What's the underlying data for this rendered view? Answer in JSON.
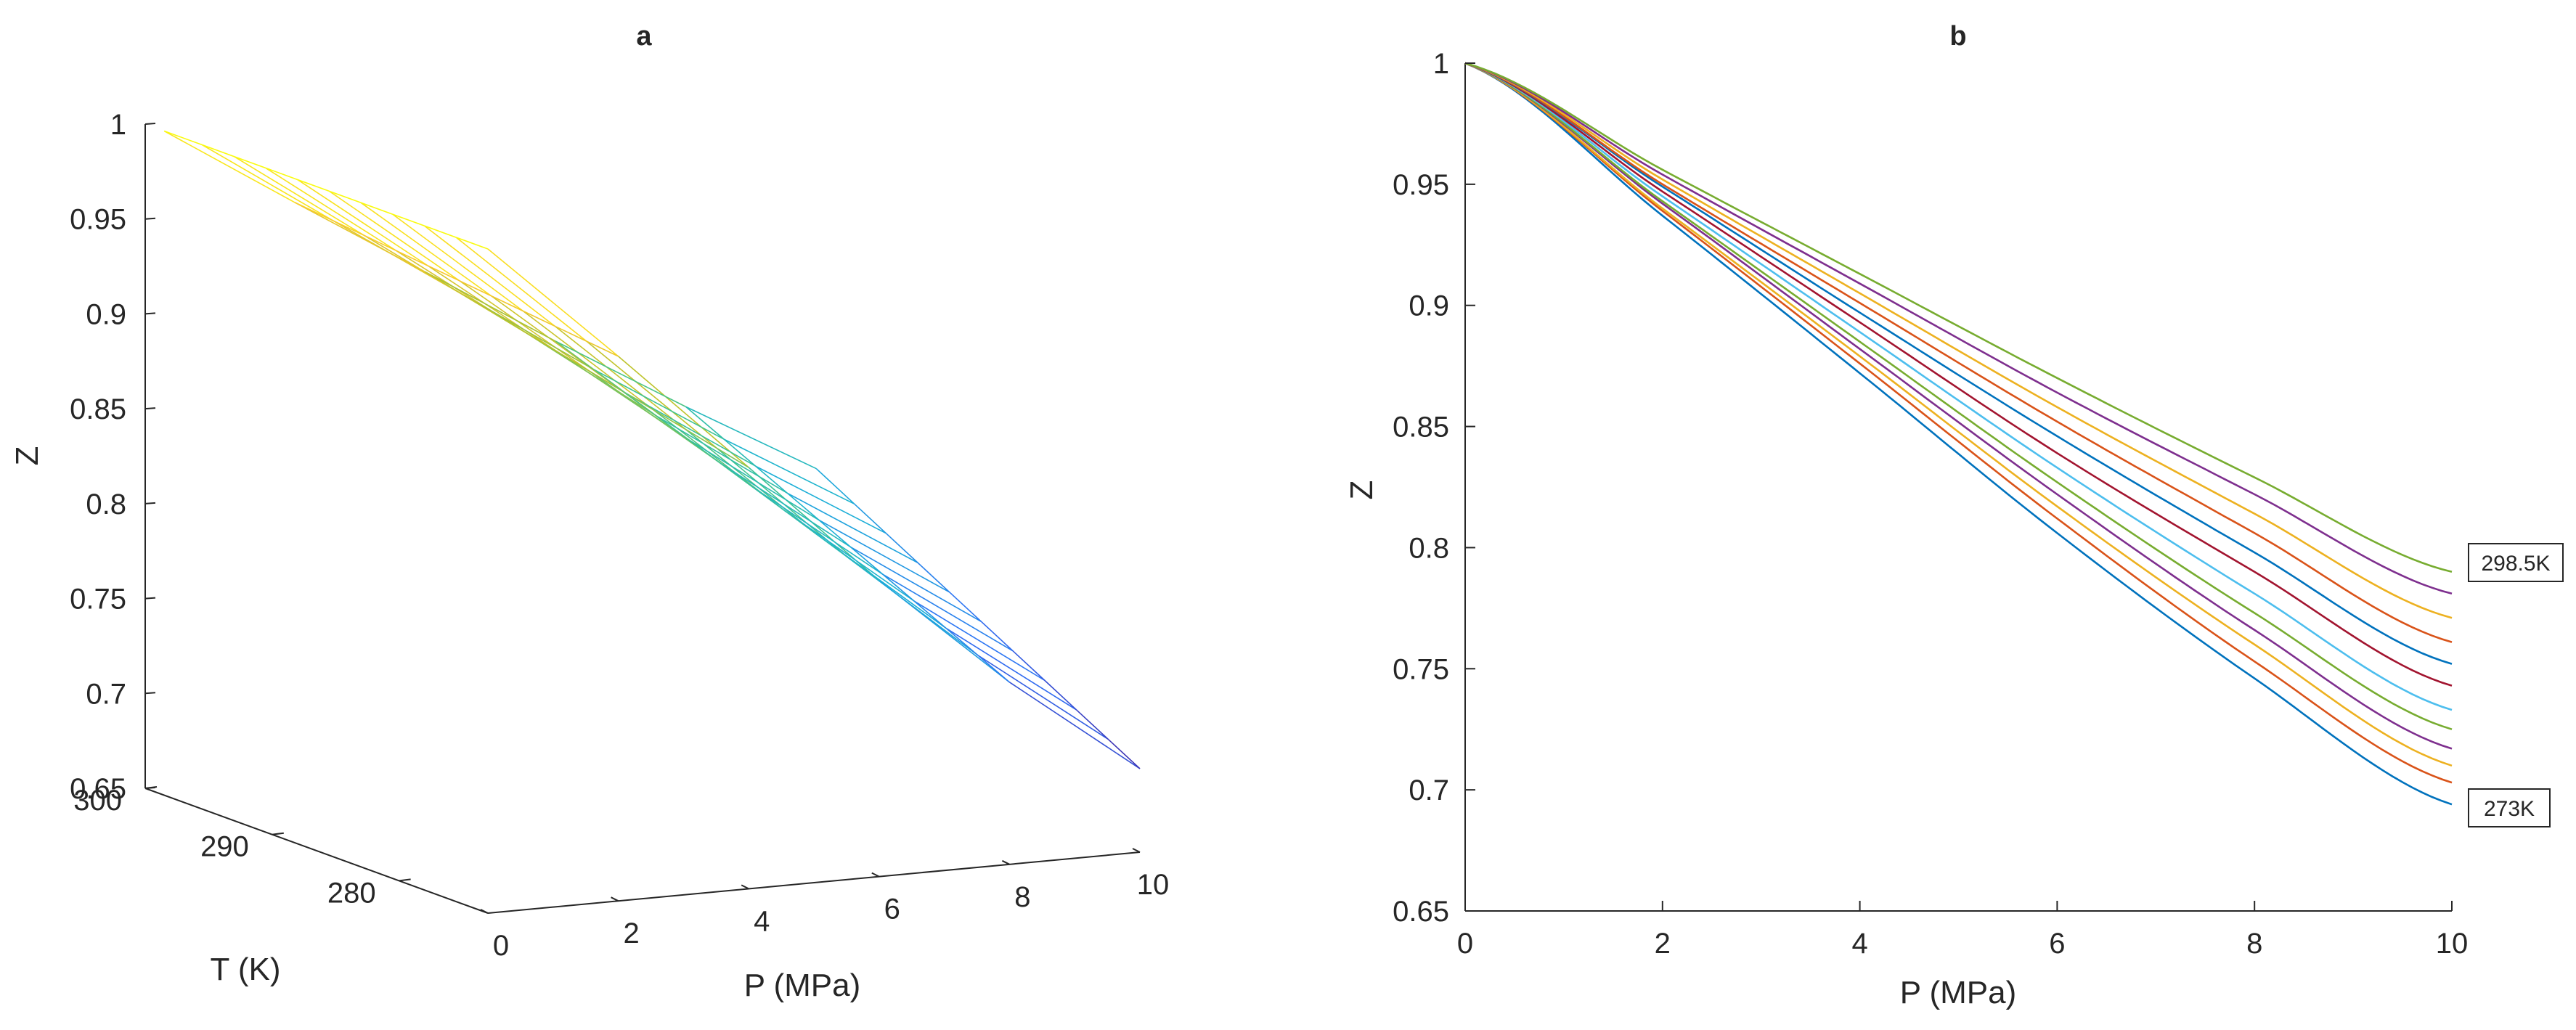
{
  "chart_data": [
    {
      "panel": "a",
      "title": "a",
      "type": "surface-mesh-3d",
      "xlabel": "P (MPa)",
      "ylabel": "T (K)",
      "zlabel": "Z",
      "xlim": [
        0,
        10
      ],
      "ylim": [
        273,
        300
      ],
      "zlim": [
        0.65,
        1.0
      ],
      "xticks": [
        "0",
        "2",
        "4",
        "6",
        "8",
        "10"
      ],
      "yticks": [
        "300",
        "290",
        "280"
      ],
      "zticks": [
        "0.65",
        "0.7",
        "0.75",
        "0.8",
        "0.85",
        "0.9",
        "0.95",
        "1"
      ],
      "colormap": [
        "#3e26a8",
        "#2e70f6",
        "#1ab2d5",
        "#40c48c",
        "#b3c22b",
        "#f9c92e",
        "#f9fb0e"
      ],
      "surface": {
        "P_points": [
          0,
          2,
          4,
          6,
          8,
          10
        ],
        "T_points": [
          273,
          275.5,
          278,
          280.5,
          283,
          285.5,
          288,
          290.5,
          293,
          295.5,
          298.5
        ],
        "Z_at_273K": [
          1.0,
          0.937,
          0.872,
          0.806,
          0.746,
          0.694
        ],
        "Z_at_298_5K": [
          1.0,
          0.956,
          0.913,
          0.87,
          0.829,
          0.79
        ]
      }
    },
    {
      "panel": "b",
      "title": "b",
      "type": "line",
      "xlabel": "P (MPa)",
      "ylabel": "Z",
      "xlim": [
        0,
        10
      ],
      "ylim": [
        0.65,
        1.0
      ],
      "xticks": [
        "0",
        "2",
        "4",
        "6",
        "8",
        "10"
      ],
      "yticks": [
        "0.65",
        "0.7",
        "0.75",
        "0.8",
        "0.85",
        "0.9",
        "0.95",
        "1"
      ],
      "x": [
        0,
        2,
        4,
        6,
        8,
        10
      ],
      "annotations": [
        "298.5K",
        "273K"
      ],
      "series": [
        {
          "color": "#0072bd",
          "values": [
            1.0,
            0.937,
            0.872,
            0.806,
            0.746,
            0.694
          ]
        },
        {
          "color": "#d95319",
          "values": [
            1.0,
            0.939,
            0.876,
            0.812,
            0.753,
            0.703
          ]
        },
        {
          "color": "#edb120",
          "values": [
            1.0,
            0.94,
            0.879,
            0.817,
            0.76,
            0.71
          ]
        },
        {
          "color": "#7e2f8e",
          "values": [
            1.0,
            0.942,
            0.882,
            0.822,
            0.766,
            0.717
          ]
        },
        {
          "color": "#77ac30",
          "values": [
            1.0,
            0.943,
            0.885,
            0.827,
            0.773,
            0.725
          ]
        },
        {
          "color": "#4dbeee",
          "values": [
            1.0,
            0.945,
            0.889,
            0.833,
            0.781,
            0.733
          ]
        },
        {
          "color": "#a2142f",
          "values": [
            1.0,
            0.947,
            0.893,
            0.839,
            0.79,
            0.743
          ]
        },
        {
          "color": "#0072bd",
          "values": [
            1.0,
            0.949,
            0.897,
            0.846,
            0.798,
            0.752
          ]
        },
        {
          "color": "#d95319",
          "values": [
            1.0,
            0.95,
            0.901,
            0.852,
            0.806,
            0.761
          ]
        },
        {
          "color": "#edb120",
          "values": [
            1.0,
            0.952,
            0.905,
            0.858,
            0.814,
            0.771
          ]
        },
        {
          "color": "#7e2f8e",
          "values": [
            1.0,
            0.954,
            0.909,
            0.864,
            0.822,
            0.781
          ]
        },
        {
          "color": "#77ac30",
          "values": [
            1.0,
            0.956,
            0.913,
            0.87,
            0.829,
            0.79
          ]
        }
      ]
    }
  ]
}
